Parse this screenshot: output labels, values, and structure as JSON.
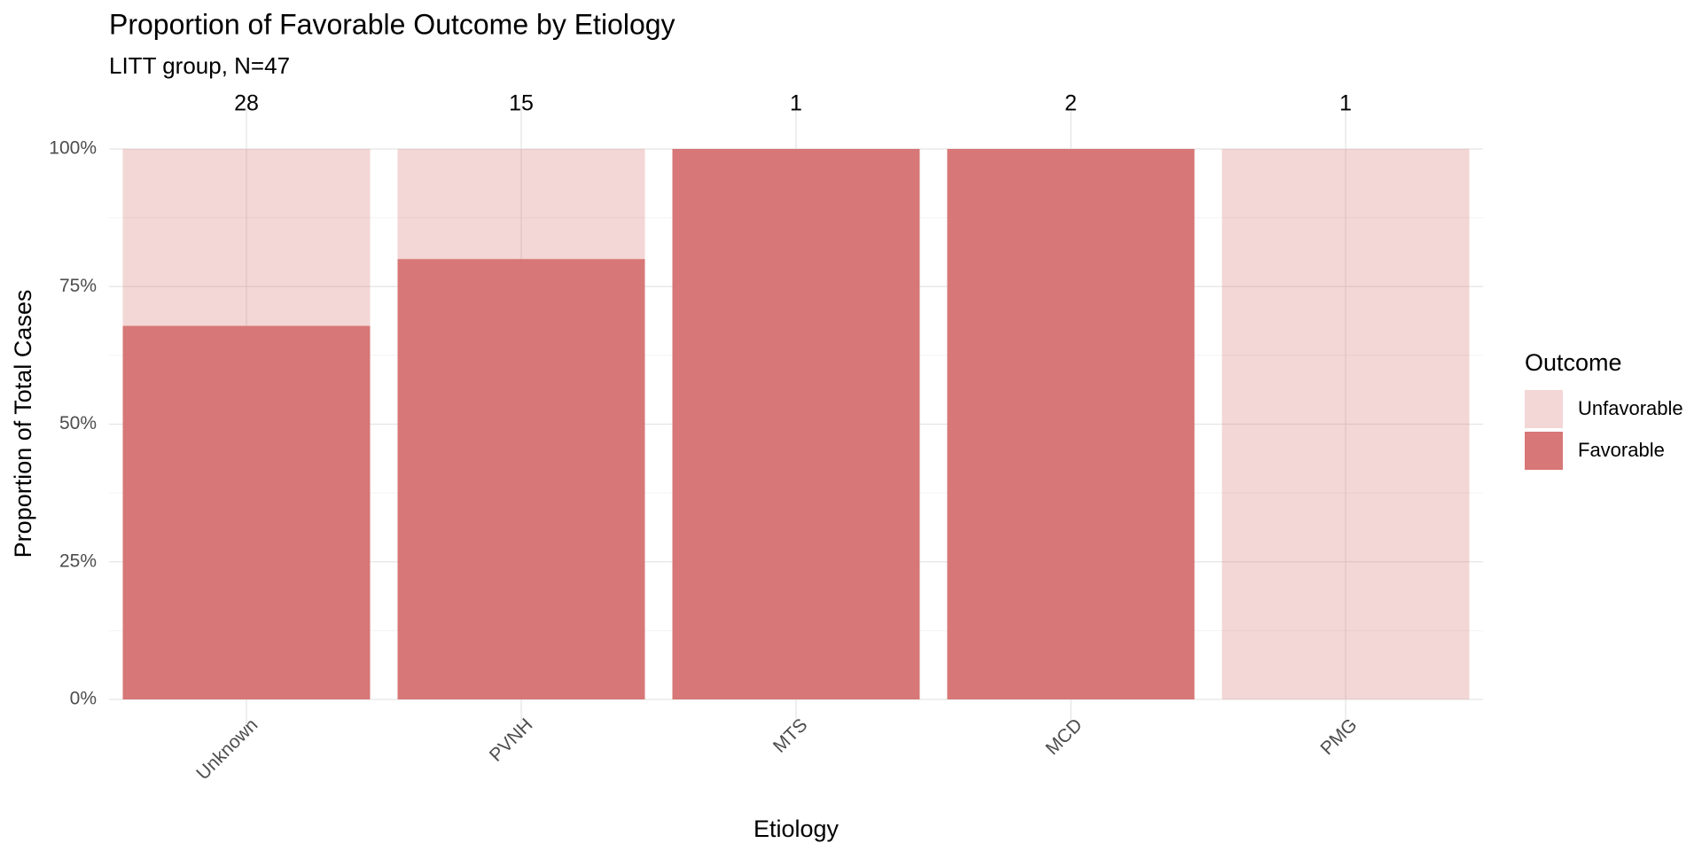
{
  "chart_data": {
    "type": "stacked_bar",
    "title": "Proportion of Favorable Outcome by Etiology",
    "subtitle": "LITT group, N=47",
    "x_label": "Etiology",
    "y_label": "Proportion of Total Cases",
    "categories": [
      "Unknown",
      "PVNH",
      "MTS",
      "MCD",
      "PMG"
    ],
    "counts": [
      28,
      15,
      1,
      2,
      1
    ],
    "series": [
      {
        "name": "Favorable",
        "color": "#d77777",
        "opacity": 1,
        "values": [
          67.86,
          80,
          100,
          100,
          0
        ]
      },
      {
        "name": "Unfavorable",
        "color": "#d77777",
        "opacity": 0.3,
        "values": [
          32.14,
          20,
          0,
          0,
          100
        ]
      }
    ],
    "legend_title": "Outcome",
    "legend": "right",
    "ylim": [
      0,
      100
    ],
    "yticks": [
      {
        "value": 0,
        "label": "0%"
      },
      {
        "value": 25,
        "label": "25%"
      },
      {
        "value": 50,
        "label": "50%"
      },
      {
        "value": 75,
        "label": "75%"
      },
      {
        "value": 100,
        "label": "100%"
      }
    ],
    "minor_yticks": [
      12.5,
      37.5,
      62.5,
      87.5
    ],
    "grid": true
  }
}
